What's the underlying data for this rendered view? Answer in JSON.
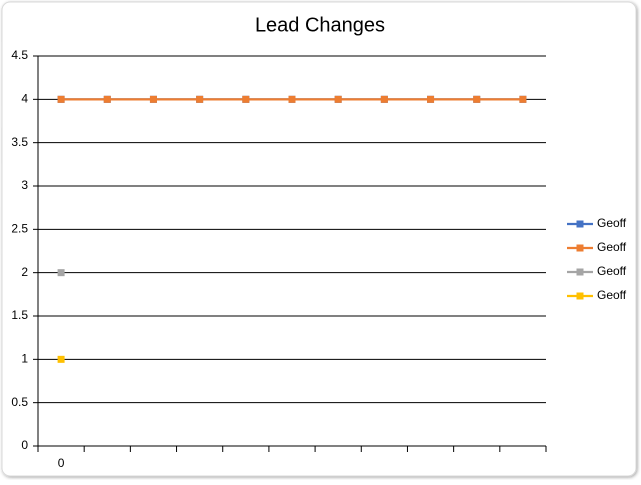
{
  "chart_data": {
    "type": "line",
    "title": "Lead Changes",
    "categories": [
      "0",
      null,
      null,
      null,
      null,
      null,
      null,
      null,
      null,
      null,
      null
    ],
    "series": [
      {
        "name": "Geoff",
        "color": "#4472c4",
        "values": [
          4,
          4,
          4,
          4,
          4,
          4,
          4,
          4,
          4,
          4,
          4
        ]
      },
      {
        "name": "Geoff",
        "color": "#ed7d31",
        "values": [
          4,
          4,
          4,
          4,
          4,
          4,
          4,
          4,
          4,
          4,
          4
        ]
      },
      {
        "name": "Geoff",
        "color": "#a5a5a5",
        "values": [
          2,
          null,
          null,
          null,
          null,
          null,
          null,
          null,
          null,
          null,
          null
        ]
      },
      {
        "name": "Geoff",
        "color": "#ffc000",
        "values": [
          1,
          null,
          null,
          null,
          null,
          null,
          null,
          null,
          null,
          null,
          null
        ]
      }
    ],
    "ylim": [
      0,
      4.5
    ],
    "yticks": [
      0,
      0.5,
      1,
      1.5,
      2,
      2.5,
      3,
      3.5,
      4,
      4.5
    ],
    "grid": true,
    "legend": "right"
  }
}
